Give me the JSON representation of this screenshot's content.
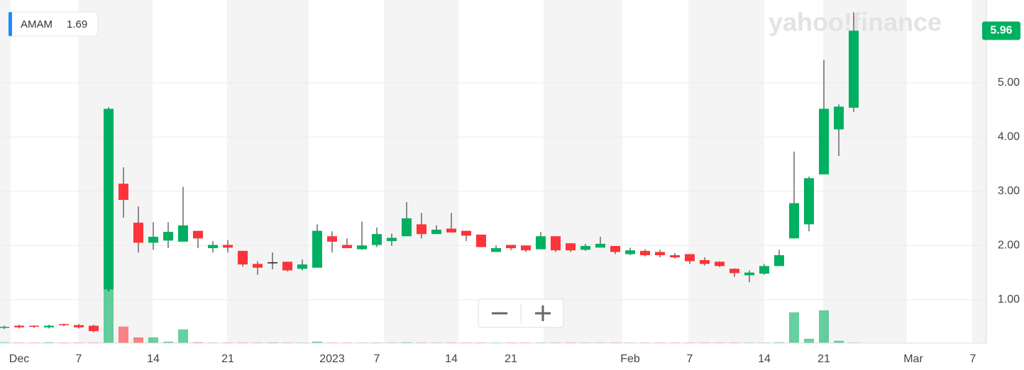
{
  "chart_data": {
    "type": "candlestick",
    "watermark": "yahoo!finance",
    "legend": {
      "symbol": "AMAM",
      "value": 1.69
    },
    "categories": [
      null,
      "Dec",
      null,
      null,
      null,
      "7",
      null,
      null,
      null,
      null,
      "14",
      null,
      null,
      null,
      null,
      "21",
      null,
      null,
      null,
      null,
      null,
      null,
      "2023",
      null,
      null,
      "7",
      null,
      null,
      null,
      null,
      "14",
      null,
      null,
      null,
      "21",
      null,
      null,
      null,
      null,
      null,
      null,
      null,
      "Feb",
      null,
      null,
      null,
      "7",
      null,
      null,
      null,
      null,
      "14",
      null,
      null,
      null,
      "21",
      null,
      null,
      null,
      null,
      null,
      "Mar",
      null,
      null,
      null,
      "7"
    ],
    "open": [
      0.48,
      0.52,
      0.52,
      0.49,
      0.55,
      0.53,
      0.52,
      1.19,
      3.14,
      2.42,
      2.05,
      2.09,
      2.07,
      2.27,
      1.95,
      2.01,
      1.9,
      1.66,
      1.69,
      1.7,
      1.57,
      1.59,
      2.17,
      2.01,
      1.93,
      2.01,
      2.08,
      2.17,
      2.39,
      2.21,
      2.31,
      2.27,
      2.2,
      1.88,
      2.01,
      2.0,
      1.93,
      2.17,
      2.04,
      1.92,
      1.96,
      1.99,
      1.84,
      1.9,
      1.88,
      1.82,
      1.84,
      1.73,
      1.7,
      1.57,
      1.45,
      1.48,
      1.62,
      2.13,
      2.39,
      3.31,
      4.14,
      4.54,
      null,
      null,
      null,
      null,
      null,
      null,
      null,
      null
    ],
    "high": [
      0.52,
      0.54,
      0.53,
      0.54,
      0.56,
      0.55,
      0.54,
      4.55,
      3.44,
      2.72,
      2.43,
      2.43,
      3.08,
      2.27,
      2.08,
      2.1,
      1.9,
      1.71,
      1.87,
      1.7,
      1.74,
      2.39,
      2.26,
      2.13,
      2.44,
      2.33,
      2.22,
      2.8,
      2.6,
      2.37,
      2.6,
      2.27,
      2.2,
      2.0,
      2.01,
      2.0,
      2.25,
      2.17,
      2.04,
      2.03,
      2.16,
      1.99,
      1.96,
      1.93,
      1.92,
      1.86,
      1.84,
      1.78,
      1.71,
      1.58,
      1.54,
      1.66,
      1.92,
      3.73,
      3.27,
      5.42,
      4.6,
      6.3,
      null,
      null,
      null,
      null,
      null,
      null,
      null,
      null
    ],
    "low": [
      0.46,
      0.47,
      0.48,
      0.47,
      0.51,
      0.47,
      0.4,
      1.15,
      2.51,
      1.87,
      1.92,
      1.95,
      2.07,
      1.95,
      1.87,
      1.87,
      1.61,
      1.46,
      1.56,
      1.52,
      1.54,
      1.59,
      1.87,
      1.95,
      1.92,
      1.97,
      1.99,
      2.17,
      2.13,
      2.21,
      2.24,
      2.08,
      1.97,
      1.88,
      1.91,
      1.88,
      1.93,
      1.88,
      1.88,
      1.9,
      1.96,
      1.84,
      1.82,
      1.8,
      1.78,
      1.76,
      1.66,
      1.63,
      1.6,
      1.42,
      1.32,
      1.46,
      1.62,
      2.13,
      2.26,
      3.31,
      3.65,
      4.46,
      null,
      null,
      null,
      null,
      null,
      null,
      null,
      null
    ],
    "close": [
      0.5,
      0.49,
      0.5,
      0.52,
      0.53,
      0.49,
      0.42,
      4.52,
      2.84,
      2.05,
      2.16,
      2.25,
      2.37,
      2.13,
      2.01,
      1.96,
      1.65,
      1.59,
      1.69,
      1.54,
      1.65,
      2.27,
      2.07,
      1.95,
      2.0,
      2.21,
      2.14,
      2.5,
      2.21,
      2.29,
      2.24,
      2.18,
      1.97,
      1.95,
      1.95,
      1.91,
      2.17,
      1.91,
      1.91,
      1.99,
      2.03,
      1.88,
      1.91,
      1.82,
      1.82,
      1.78,
      1.71,
      1.66,
      1.62,
      1.49,
      1.5,
      1.62,
      1.82,
      2.78,
      3.24,
      4.52,
      4.56,
      5.96,
      null,
      null,
      null,
      null,
      null,
      null,
      null,
      null
    ],
    "volume": [
      0.3,
      0.2,
      0.2,
      0.3,
      0.2,
      0.2,
      0.2,
      26.5,
      5.8,
      2,
      2,
      0.5,
      4.8,
      0.3,
      0.2,
      0.2,
      0.2,
      0.2,
      0.2,
      0.2,
      0.2,
      0.5,
      0.2,
      0.2,
      0.2,
      0.2,
      0.2,
      0.3,
      0.2,
      0.2,
      0.2,
      0.2,
      0.2,
      0.2,
      0.2,
      0.2,
      0.2,
      0.2,
      0.2,
      0.2,
      0.2,
      0.2,
      0.2,
      0.2,
      0.2,
      0.2,
      0.2,
      0.2,
      0.2,
      0.2,
      0.2,
      0.2,
      0.3,
      10.8,
      1.5,
      11.5,
      0.8,
      0.2,
      null,
      null,
      null,
      null,
      null,
      null,
      null,
      null
    ],
    "up_color": "#00b061",
    "down_color": "#ff333a",
    "doji_color": "#222222",
    "ylim": [
      0.2,
      6.5
    ],
    "yticks": [
      {
        "value": 1,
        "label": "1.00"
      },
      {
        "value": 2,
        "label": "2.00"
      },
      {
        "value": 3,
        "label": "3.00"
      },
      {
        "value": 4,
        "label": "4.00"
      },
      {
        "value": 5,
        "label": "5.00"
      }
    ],
    "y2lim": [
      0,
      120
    ],
    "grid": true
  }
}
